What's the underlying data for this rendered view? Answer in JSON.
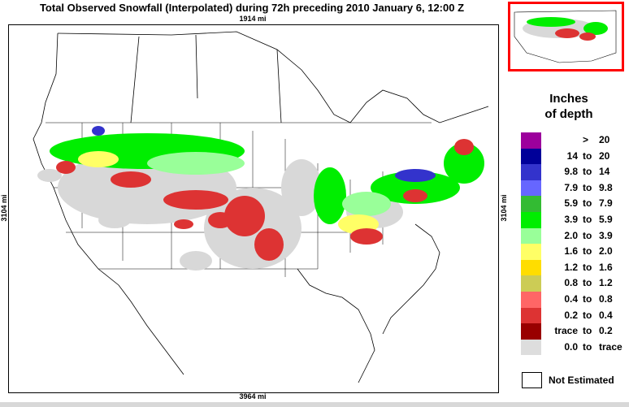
{
  "title": "Total Observed Snowfall (Interpolated) during 72h preceding 2010 January 6, 12:00 Z",
  "map": {
    "width_label": "1914 mi",
    "bottom_label": "3964 mi",
    "height_label_left": "3104 mi",
    "height_label_right": "3104 mi"
  },
  "legend": {
    "title_line1": "Inches",
    "title_line2": "of depth",
    "items": [
      {
        "a": "",
        "b": ">",
        "c": "20",
        "color": "#9c009c"
      },
      {
        "a": "14",
        "b": "to",
        "c": "20",
        "color": "#000099"
      },
      {
        "a": "9.8",
        "b": "to",
        "c": "14",
        "color": "#3333cc"
      },
      {
        "a": "7.9",
        "b": "to",
        "c": "9.8",
        "color": "#6666ff"
      },
      {
        "a": "5.9",
        "b": "to",
        "c": "7.9",
        "color": "#33bb33"
      },
      {
        "a": "3.9",
        "b": "to",
        "c": "5.9",
        "color": "#00ee00"
      },
      {
        "a": "2.0",
        "b": "to",
        "c": "3.9",
        "color": "#99ff99"
      },
      {
        "a": "1.6",
        "b": "to",
        "c": "2.0",
        "color": "#ffff66"
      },
      {
        "a": "1.2",
        "b": "to",
        "c": "1.6",
        "color": "#ffdd00"
      },
      {
        "a": "0.8",
        "b": "to",
        "c": "1.2",
        "color": "#cccc55"
      },
      {
        "a": "0.4",
        "b": "to",
        "c": "0.8",
        "color": "#ff6666"
      },
      {
        "a": "0.2",
        "b": "to",
        "c": "0.4",
        "color": "#dd3333"
      },
      {
        "a": "trace",
        "b": "to",
        "c": "0.2",
        "color": "#990000"
      },
      {
        "a": "0.0",
        "b": "to",
        "c": "trace",
        "color": "#dddddd"
      }
    ],
    "not_estimated_label": "Not Estimated"
  }
}
